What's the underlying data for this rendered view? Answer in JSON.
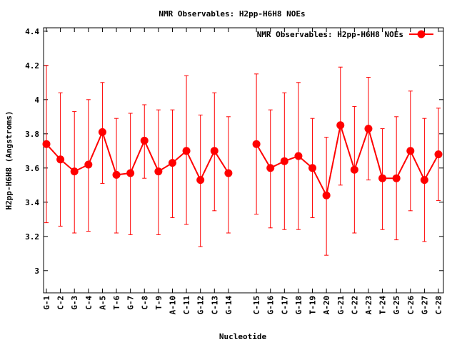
{
  "chart_data": {
    "type": "line",
    "title": "NMR Observables: H2pp-H6H8 NOEs",
    "xlabel": "Nucleotide",
    "ylabel": "H2pp-H6H8 (Angstroms)",
    "ylim": [
      2.87,
      4.42
    ],
    "yticks": [
      "3",
      "3.2",
      "3.4",
      "3.6",
      "3.8",
      "4",
      "4.2",
      "4.4"
    ],
    "ytick_values": [
      3.0,
      3.2,
      3.4,
      3.6,
      3.8,
      4.0,
      4.2,
      4.4
    ],
    "grid": false,
    "legend_position": "top-right",
    "categories": [
      "G-1",
      "C-2",
      "G-3",
      "C-4",
      "A-5",
      "T-6",
      "G-7",
      "C-8",
      "T-9",
      "A-10",
      "C-11",
      "G-12",
      "C-13",
      "G-14",
      "C-15",
      "G-16",
      "C-17",
      "G-18",
      "T-19",
      "A-20",
      "G-21",
      "C-22",
      "A-23",
      "T-24",
      "G-25",
      "C-26",
      "G-27",
      "C-28"
    ],
    "series": [
      {
        "name": "NMR Observables: H2pp-H6H8 NOEs",
        "color": "#ff0000",
        "segments": [
          [
            0,
            13
          ],
          [
            14,
            27
          ]
        ],
        "values": [
          3.74,
          3.65,
          3.58,
          3.62,
          3.81,
          3.56,
          3.57,
          3.76,
          3.58,
          3.63,
          3.7,
          3.53,
          3.7,
          3.57,
          3.74,
          3.6,
          3.64,
          3.67,
          3.6,
          3.44,
          3.85,
          3.59,
          3.83,
          3.54,
          3.54,
          3.7,
          3.53,
          3.68
        ],
        "err_low": [
          3.28,
          3.26,
          3.22,
          3.23,
          3.51,
          3.22,
          3.21,
          3.54,
          3.21,
          3.31,
          3.27,
          3.14,
          3.35,
          3.22,
          3.33,
          3.25,
          3.24,
          3.24,
          3.31,
          3.09,
          3.5,
          3.22,
          3.53,
          3.24,
          3.18,
          3.35,
          3.17,
          3.41
        ],
        "err_high": [
          4.2,
          4.04,
          3.93,
          4.0,
          4.1,
          3.89,
          3.92,
          3.97,
          3.94,
          3.94,
          4.14,
          3.91,
          4.04,
          3.9,
          4.15,
          3.94,
          4.04,
          4.1,
          3.89,
          3.78,
          4.19,
          3.96,
          4.13,
          3.83,
          3.9,
          4.05,
          3.89,
          3.95
        ]
      }
    ]
  }
}
